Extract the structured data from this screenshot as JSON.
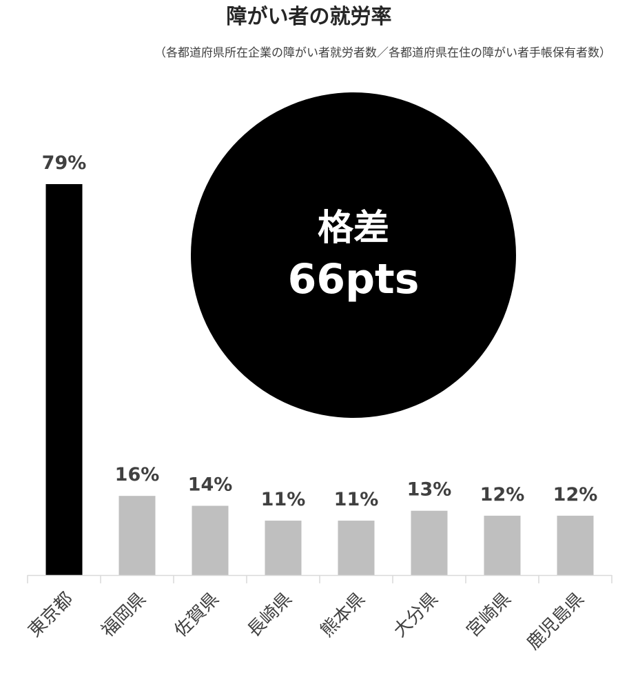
{
  "chart_data": {
    "type": "bar",
    "title": "障がい者の就労率",
    "subtitle": "（各都道府県所在企業の障がい者就労者数／各都道府県在住の障がい者手帳保有者数）",
    "categories": [
      "東京都",
      "福岡県",
      "佐賀県",
      "長崎県",
      "熊本県",
      "大分県",
      "宮崎県",
      "鹿児島県"
    ],
    "values": [
      79,
      16,
      14,
      11,
      11,
      13,
      12,
      12
    ],
    "data_labels": [
      "79%",
      "16%",
      "14%",
      "11%",
      "11%",
      "13%",
      "12%",
      "12%"
    ],
    "ylim": [
      0,
      100
    ],
    "grid": false,
    "legend": "none",
    "bar_colors": [
      "#000000",
      "#bfbfbf",
      "#bfbfbf",
      "#bfbfbf",
      "#bfbfbf",
      "#bfbfbf",
      "#bfbfbf",
      "#bfbfbf"
    ],
    "annotation": {
      "line1": "格差",
      "line2": "66pts",
      "color": "#000000"
    }
  }
}
